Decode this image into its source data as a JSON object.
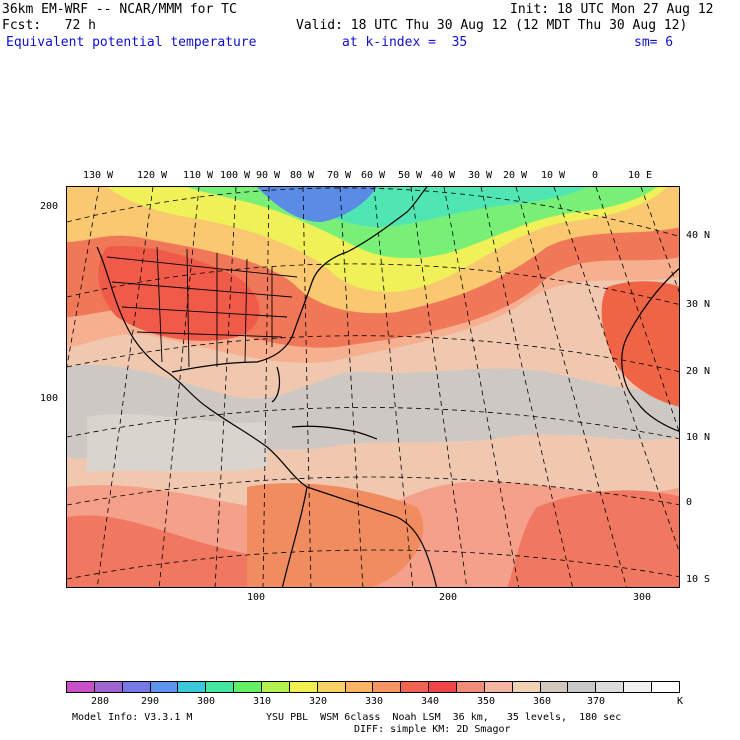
{
  "header": {
    "model_line": "36km EM-WRF -- NCAR/MMM for TC",
    "init_line": "Init: 18 UTC Mon 27 Aug 12",
    "fcst_line": "Fcst:   72 h",
    "valid_line": "Valid: 18 UTC Thu 30 Aug 12 (12 MDT Thu 30 Aug 12)",
    "field_name": "Equivalent potential temperature",
    "level": "at k-index =  35",
    "smoothing": "sm= 6"
  },
  "map": {
    "longitude_labels": [
      "130 W",
      "120 W",
      "110 W",
      "100 W",
      "90 W",
      "80 W",
      "70 W",
      "60 W",
      "50 W",
      "40 W",
      "30 W",
      "20 W",
      "10 W",
      "0",
      "10 E"
    ],
    "latitude_labels": [
      "40 N",
      "30 N",
      "20 N",
      "10 N",
      "0",
      "10 S"
    ],
    "grid_y_labels": [
      "200",
      "100"
    ],
    "grid_x_labels": [
      "100",
      "200",
      "300"
    ]
  },
  "colorbar": {
    "colors": [
      "#c850c8",
      "#a064d2",
      "#7878e6",
      "#5a96f0",
      "#3cc8dc",
      "#46e6a0",
      "#64f064",
      "#b4f050",
      "#f0f050",
      "#fad264",
      "#fab464",
      "#f59664",
      "#f06450",
      "#f04646",
      "#f08c78",
      "#f5b4a0",
      "#f0d2b4",
      "#d2c8be",
      "#c8c8c8",
      "#dcdcdc",
      "#f0f0f0",
      "#ffffff"
    ],
    "tick_labels": [
      "280",
      "290",
      "300",
      "310",
      "320",
      "330",
      "340",
      "350",
      "360",
      "370",
      "K"
    ]
  },
  "footer": {
    "model_info": "Model Info: V3.3.1 M",
    "physics": "YSU PBL  WSM 6class  Noah LSM  36 km,   35 levels,  180 sec",
    "diffusion": "DIFF: simple KM: 2D Smagor"
  }
}
